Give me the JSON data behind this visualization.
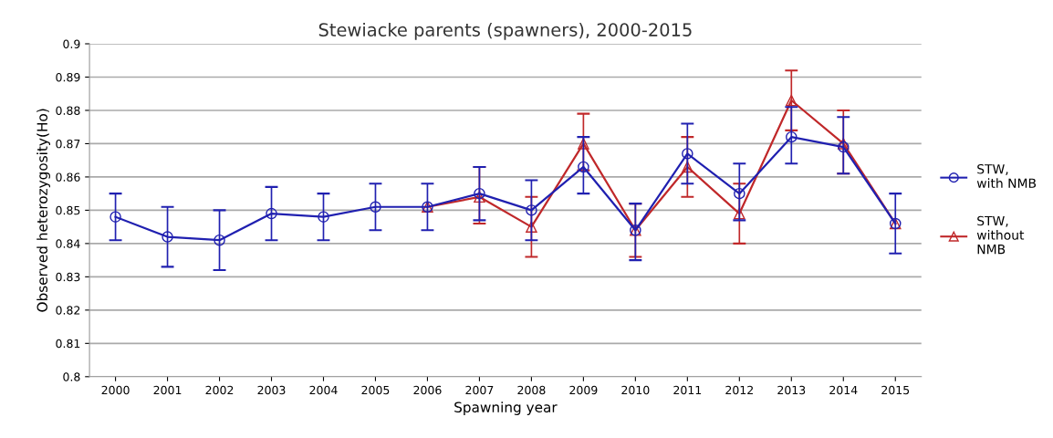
{
  "chart_data": {
    "type": "line",
    "title": "Stewiacke parents (spawners), 2000-2015",
    "xlabel": "Spawning year",
    "ylabel": "Observed heterozygosity(Ho)",
    "categories": [
      "2000",
      "2001",
      "2002",
      "2003",
      "2004",
      "2005",
      "2006",
      "2007",
      "2008",
      "2009",
      "2010",
      "2011",
      "2012",
      "2013",
      "2014",
      "2015"
    ],
    "series": [
      {
        "name": "STW,\nwith NMB",
        "color": "#2020b0",
        "marker": "circle",
        "values": [
          0.848,
          0.842,
          0.841,
          0.849,
          0.848,
          0.851,
          0.851,
          0.855,
          0.85,
          0.863,
          0.844,
          0.867,
          0.855,
          0.872,
          0.869,
          0.846
        ],
        "errors": [
          [
            0.841,
            0.855
          ],
          [
            0.833,
            0.851
          ],
          [
            0.832,
            0.85
          ],
          [
            0.841,
            0.857
          ],
          [
            0.841,
            0.855
          ],
          [
            0.844,
            0.858
          ],
          [
            0.844,
            0.858
          ],
          [
            0.847,
            0.863
          ],
          [
            0.841,
            0.859
          ],
          [
            0.855,
            0.872
          ],
          [
            0.835,
            0.852
          ],
          [
            0.858,
            0.876
          ],
          [
            0.847,
            0.864
          ],
          [
            0.864,
            0.881
          ],
          [
            0.861,
            0.878
          ],
          [
            0.837,
            0.855
          ]
        ]
      },
      {
        "name": "STW,\nwithout\nNMB",
        "color": "#c0282a",
        "marker": "triangle",
        "values": [
          null,
          null,
          null,
          null,
          null,
          null,
          0.851,
          0.854,
          0.845,
          0.87,
          0.844,
          0.863,
          0.849,
          0.883,
          0.87,
          0.846
        ],
        "errors": [
          null,
          null,
          null,
          null,
          null,
          null,
          null,
          [
            0.846,
            0.863
          ],
          [
            0.836,
            0.854
          ],
          [
            0.862,
            0.879
          ],
          [
            0.836,
            0.852
          ],
          [
            0.854,
            0.872
          ],
          [
            0.84,
            0.858
          ],
          [
            0.874,
            0.892
          ],
          [
            0.861,
            0.88
          ],
          null
        ]
      }
    ],
    "ylim": [
      0.8,
      0.9
    ],
    "yticks": [
      0.8,
      0.81,
      0.82,
      0.83,
      0.84,
      0.85,
      0.86,
      0.87,
      0.88,
      0.89,
      0.9
    ],
    "grid": "y",
    "legend": "right",
    "line_style": "solid"
  }
}
